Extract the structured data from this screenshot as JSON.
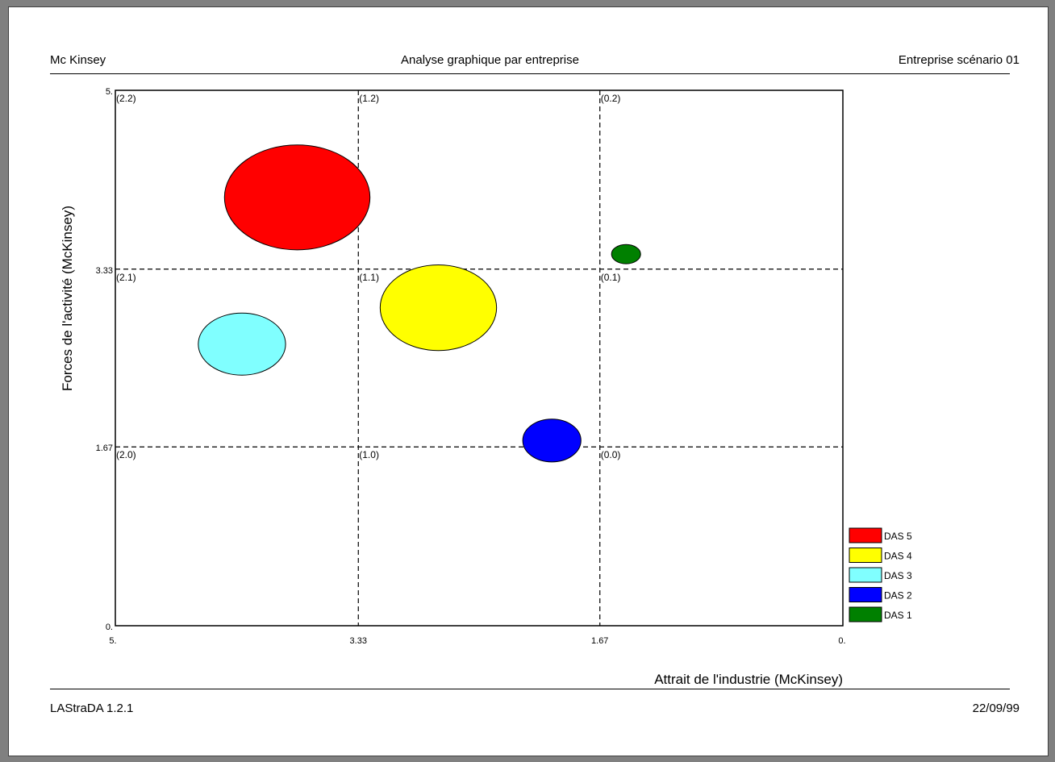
{
  "header": {
    "left": "Mc Kinsey",
    "center": "Analyse graphique par entreprise",
    "right": "Entreprise scénario 01"
  },
  "footer": {
    "left": "LAStraDA 1.2.1",
    "right": "22/09/99"
  },
  "chart_data": {
    "type": "scatter",
    "title": "",
    "xlabel": "Attrait de l'industrie (McKinsey)",
    "ylabel": "Forces de l'activité (McKinsey)",
    "xlim": [
      5,
      0
    ],
    "ylim": [
      0,
      5
    ],
    "x_ticks": [
      5,
      3.33,
      1.67,
      0
    ],
    "x_tick_labels": [
      "5.",
      "3.33",
      "1.67",
      "0."
    ],
    "y_ticks": [
      0,
      1.67,
      3.33,
      5
    ],
    "y_tick_labels": [
      "0.",
      "1.67",
      "3.33",
      "5."
    ],
    "grid": "dashed at thirds",
    "zones": [
      {
        "label": "(2.2)",
        "x": 5,
        "y": 5
      },
      {
        "label": "(1.2)",
        "x": 3.33,
        "y": 5
      },
      {
        "label": "(0.2)",
        "x": 1.67,
        "y": 5
      },
      {
        "label": "(2.1)",
        "x": 5,
        "y": 3.33
      },
      {
        "label": "(1.1)",
        "x": 3.33,
        "y": 3.33
      },
      {
        "label": "(0.1)",
        "x": 1.67,
        "y": 3.33
      },
      {
        "label": "(2.0)",
        "x": 5,
        "y": 1.67
      },
      {
        "label": "(1.0)",
        "x": 3.33,
        "y": 1.67
      },
      {
        "label": "(0.0)",
        "x": 1.67,
        "y": 1.67
      }
    ],
    "series": [
      {
        "name": "DAS 5",
        "color": "#ff0000",
        "x": 3.75,
        "y": 4.0,
        "rx": 0.5,
        "ry": 0.49
      },
      {
        "name": "DAS 4",
        "color": "#ffff00",
        "x": 2.78,
        "y": 2.97,
        "rx": 0.4,
        "ry": 0.4
      },
      {
        "name": "DAS 3",
        "color": "#80ffff",
        "x": 4.13,
        "y": 2.63,
        "rx": 0.3,
        "ry": 0.29
      },
      {
        "name": "DAS 2",
        "color": "#0000ff",
        "x": 2.0,
        "y": 1.73,
        "rx": 0.2,
        "ry": 0.2
      },
      {
        "name": "DAS 1",
        "color": "#008000",
        "x": 1.49,
        "y": 3.47,
        "rx": 0.1,
        "ry": 0.09
      }
    ],
    "legend": [
      "DAS 5",
      "DAS 4",
      "DAS 3",
      "DAS 2",
      "DAS 1"
    ],
    "legend_position": "bottom-right"
  }
}
